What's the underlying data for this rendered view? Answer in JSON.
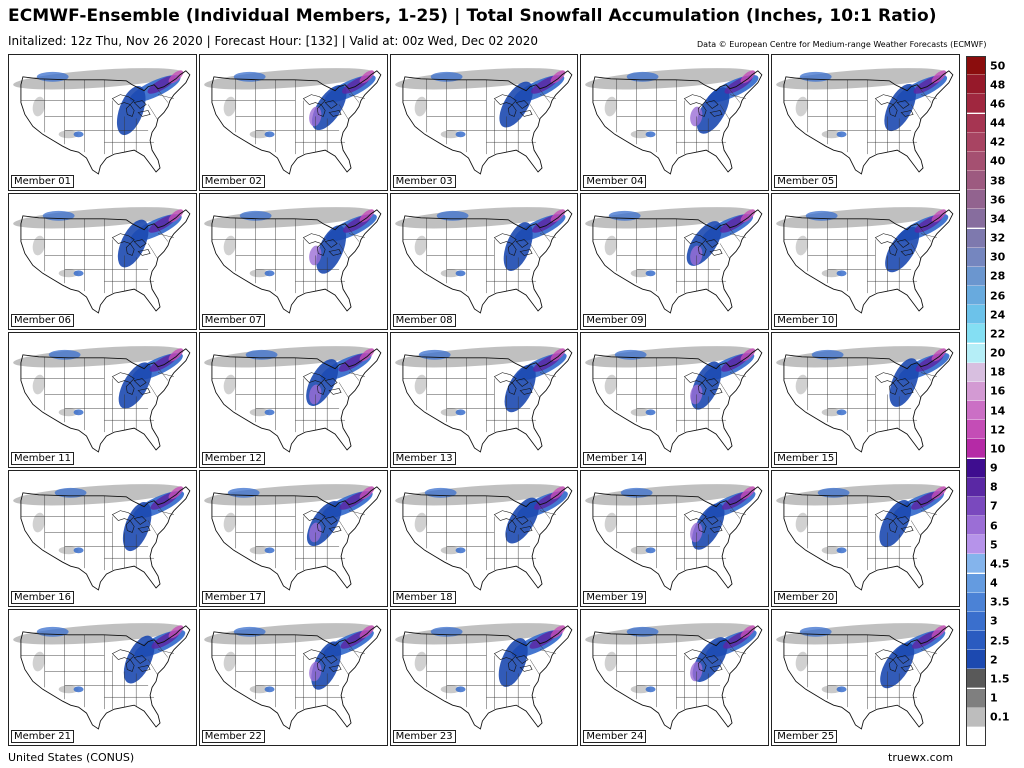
{
  "header": {
    "title": "ECMWF-Ensemble (Individual Members, 1-25) | Total Snowfall Accumulation (Inches, 10:1 Ratio)",
    "subtitle": "Initalized: 12z Thu, Nov 26 2020 | Forecast Hour: [132] | Valid at: 00z Wed, Dec 02 2020",
    "credit": "Data © European Centre for Medium-range Weather Forecasts (ECMWF)"
  },
  "panels": [
    "Member 01",
    "Member 02",
    "Member 03",
    "Member 04",
    "Member 05",
    "Member 06",
    "Member 07",
    "Member 08",
    "Member 09",
    "Member 10",
    "Member 11",
    "Member 12",
    "Member 13",
    "Member 14",
    "Member 15",
    "Member 16",
    "Member 17",
    "Member 18",
    "Member 19",
    "Member 20",
    "Member 21",
    "Member 22",
    "Member 23",
    "Member 24",
    "Member 25"
  ],
  "legend": [
    {
      "label": "50",
      "color": "#8b0d0d"
    },
    {
      "label": "48",
      "color": "#96192a"
    },
    {
      "label": "46",
      "color": "#a0273f"
    },
    {
      "label": "44",
      "color": "#a63552"
    },
    {
      "label": "42",
      "color": "#a84462"
    },
    {
      "label": "40",
      "color": "#a55071"
    },
    {
      "label": "38",
      "color": "#9d5a80"
    },
    {
      "label": "36",
      "color": "#92638f"
    },
    {
      "label": "34",
      "color": "#876d9e"
    },
    {
      "label": "32",
      "color": "#7e79ae"
    },
    {
      "label": "30",
      "color": "#7586bf"
    },
    {
      "label": "28",
      "color": "#6b96cf"
    },
    {
      "label": "26",
      "color": "#68aade"
    },
    {
      "label": "24",
      "color": "#6cc2ea"
    },
    {
      "label": "22",
      "color": "#84dff3"
    },
    {
      "label": "20",
      "color": "#b5eef7"
    },
    {
      "label": "18",
      "color": "#d8bfe0"
    },
    {
      "label": "16",
      "color": "#d39ad3"
    },
    {
      "label": "14",
      "color": "#cb6fc5"
    },
    {
      "label": "12",
      "color": "#c44db6"
    },
    {
      "label": "10",
      "color": "#b52aa6"
    },
    {
      "label": "9",
      "color": "#3e0d8f"
    },
    {
      "label": "8",
      "color": "#5a28a4"
    },
    {
      "label": "7",
      "color": "#7a49be"
    },
    {
      "label": "6",
      "color": "#9b6ed6"
    },
    {
      "label": "5",
      "color": "#b693ea"
    },
    {
      "label": "4.5",
      "color": "#84b4ec"
    },
    {
      "label": "4",
      "color": "#649be0"
    },
    {
      "label": "3.5",
      "color": "#4b82d6"
    },
    {
      "label": "3",
      "color": "#3a6fcd"
    },
    {
      "label": "2.5",
      "color": "#2a5bc0"
    },
    {
      "label": "2",
      "color": "#1c49b0"
    },
    {
      "label": "1.5",
      "color": "#595959"
    },
    {
      "label": "1",
      "color": "#7f7f7f"
    },
    {
      "label": "0.1",
      "color": "#bdbdbd"
    },
    {
      "label": "",
      "color": "#ffffff"
    }
  ],
  "footer": {
    "left": "United States (CONUS)",
    "right": "truewx.com"
  }
}
